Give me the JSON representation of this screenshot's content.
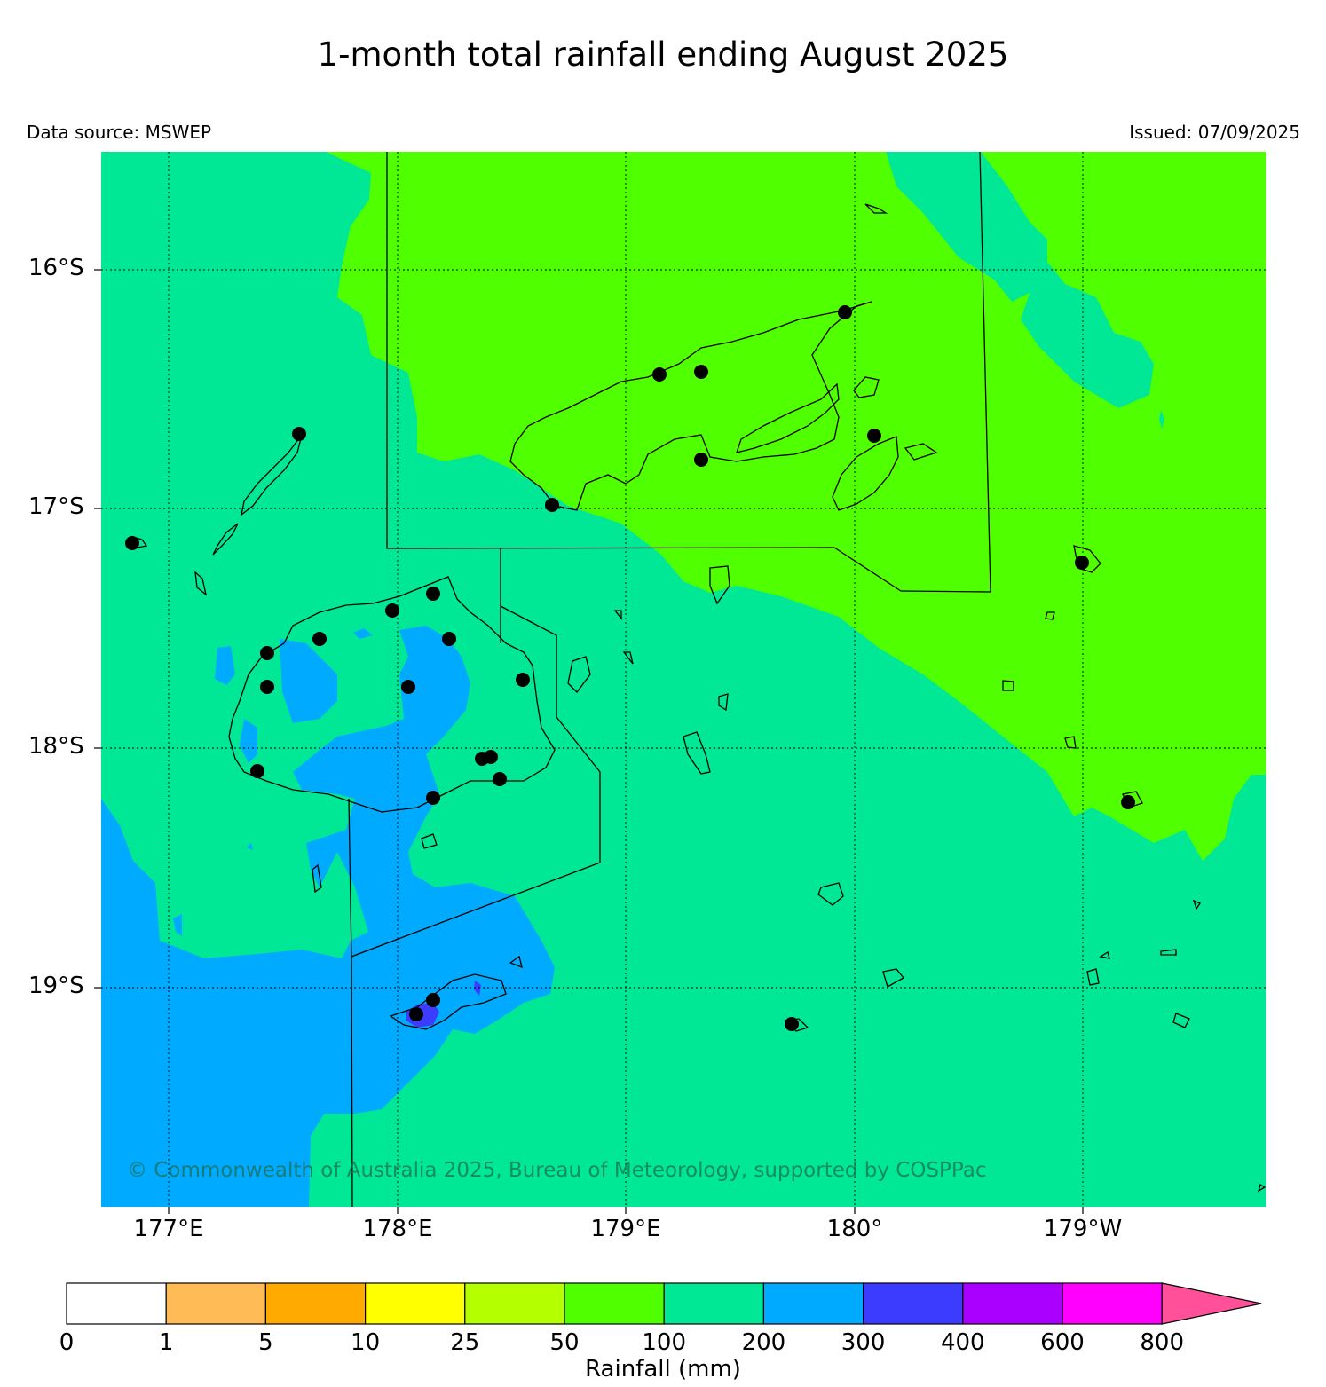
{
  "title": "1-month total rainfall ending August 2025",
  "data_source": "Data source: MSWEP",
  "issued": "Issued: 07/09/2025",
  "lat_labels": [
    "16°S",
    "17°S",
    "18°S",
    "19°S"
  ],
  "lon_labels": [
    "177°E",
    "178°E",
    "179°E",
    "180°",
    "179°W"
  ],
  "copyright": "© Commonwealth of Australia 2025, Bureau of Meteorology, supported by COSPPac",
  "colorbar": {
    "title": "Rainfall (mm)",
    "ticks": [
      "0",
      "1",
      "5",
      "10",
      "25",
      "50",
      "100",
      "200",
      "300",
      "400",
      "600",
      "800"
    ],
    "colors": [
      "#ffffff",
      "#ffbb55",
      "#ffaa00",
      "#ffff00",
      "#b4ff00",
      "#50ff00",
      "#00e896",
      "#00aaff",
      "#3c3cff",
      "#aa00ff",
      "#ff00ff",
      "#ff5099"
    ]
  },
  "legend_colors": {
    "50-100": "#50ff00",
    "100-200": "#00e896",
    "200-300": "#00aaff",
    "300-400": "#3c3cff"
  }
}
